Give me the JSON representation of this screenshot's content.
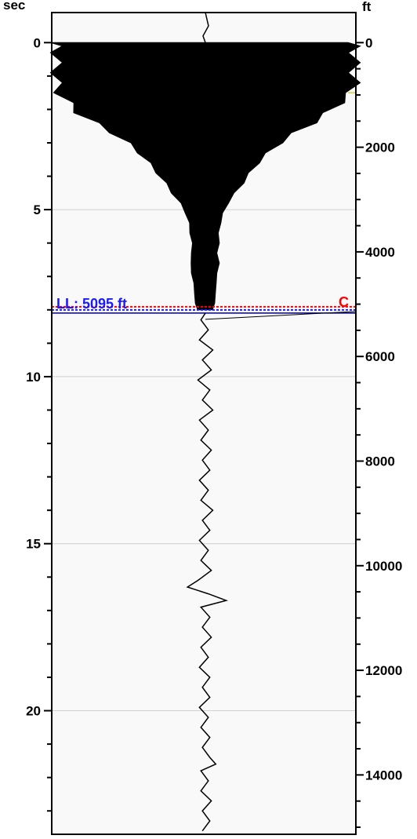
{
  "chart_data": {
    "type": "line",
    "left_axis": {
      "unit": "sec",
      "ylim": [
        -0.9,
        23.7
      ],
      "tick_labels": [
        "0",
        "5",
        "10",
        "15",
        "20"
      ],
      "major": [
        0,
        5,
        10,
        15,
        20
      ],
      "minor_step": 1
    },
    "right_axis": {
      "unit": "ft",
      "ylim": [
        -575,
        15135
      ],
      "tick_labels": [
        "0",
        "2000",
        "4000",
        "6000",
        "8000",
        "10000",
        "12000",
        "14000"
      ],
      "major": [
        0,
        2000,
        4000,
        6000,
        8000,
        10000,
        12000,
        14000
      ],
      "minor_step": 500
    },
    "grid": true,
    "marker_line": {
      "label": "LL: 5095 ft",
      "depth_ft": 5095,
      "color": "#1a1aff",
      "red_label": "C",
      "red_color": "#ff0000"
    },
    "series": [
      {
        "envelope_time_sec": [
          0,
          0.1,
          0.3,
          0.6,
          0.9,
          1.2,
          1.5,
          1.8,
          2.1,
          2.4,
          2.7,
          3.0,
          3.3,
          3.6,
          3.9,
          4.2,
          4.5,
          4.8,
          5.1,
          5.4,
          5.7,
          6.0,
          6.3,
          6.6,
          6.9,
          7.2,
          7.5,
          7.8,
          8.0
        ],
        "envelope_left": [
          -1.0,
          -1.0,
          -1.0,
          -1.0,
          -1.0,
          -1.0,
          -0.98,
          -0.92,
          -0.85,
          -0.74,
          -0.62,
          -0.52,
          -0.44,
          -0.38,
          -0.32,
          -0.27,
          -0.22,
          -0.17,
          -0.13,
          -0.11,
          -0.1,
          -0.09,
          -0.09,
          -0.1,
          -0.09,
          -0.08,
          -0.07,
          -0.07,
          -0.05
        ],
        "envelope_right": [
          1.0,
          1.0,
          1.0,
          1.0,
          1.0,
          1.0,
          0.98,
          0.9,
          0.82,
          0.72,
          0.6,
          0.5,
          0.42,
          0.35,
          0.3,
          0.25,
          0.2,
          0.15,
          0.12,
          0.1,
          0.09,
          0.09,
          0.08,
          0.09,
          0.08,
          0.07,
          0.07,
          0.06,
          0.05
        ],
        "wiggle_time_sec": [
          8.3,
          8.6,
          8.9,
          9.2,
          9.5,
          9.8,
          10.1,
          10.4,
          10.7,
          11.0,
          11.3,
          11.6,
          11.9,
          12.2,
          12.5,
          12.8,
          13.1,
          13.4,
          13.7,
          14.0,
          14.3,
          14.6,
          14.9,
          15.2,
          15.5,
          15.8,
          16.1,
          16.3,
          16.5,
          16.7,
          16.9,
          17.2,
          17.5,
          17.8,
          18.1,
          18.4,
          18.7,
          19.0,
          19.3,
          19.6,
          19.9,
          20.2,
          20.5,
          20.8,
          21.1,
          21.4,
          21.6,
          21.8,
          22.1,
          22.4,
          22.7,
          23.0,
          23.3,
          23.6
        ],
        "wiggle_amp": [
          -0.03,
          0.02,
          -0.04,
          0.05,
          -0.02,
          0.04,
          -0.05,
          0.03,
          -0.02,
          0.05,
          -0.04,
          0.02,
          -0.03,
          0.04,
          -0.02,
          0.03,
          -0.04,
          0.02,
          -0.03,
          0.05,
          -0.02,
          0.03,
          -0.04,
          0.02,
          -0.03,
          0.04,
          -0.05,
          -0.12,
          0.02,
          0.14,
          -0.03,
          0.03,
          -0.02,
          0.04,
          -0.03,
          0.02,
          -0.04,
          0.03,
          -0.02,
          0.03,
          -0.04,
          0.02,
          -0.03,
          0.03,
          -0.02,
          0.03,
          0.07,
          -0.03,
          0.02,
          -0.03,
          0.04,
          -0.02,
          0.03,
          -0.02
        ]
      }
    ]
  },
  "colors": {
    "trace": "#000000",
    "plot_bg": "#f9f9f9",
    "grid": "#cfcfcf",
    "accent_yellow": "#d8d860"
  }
}
